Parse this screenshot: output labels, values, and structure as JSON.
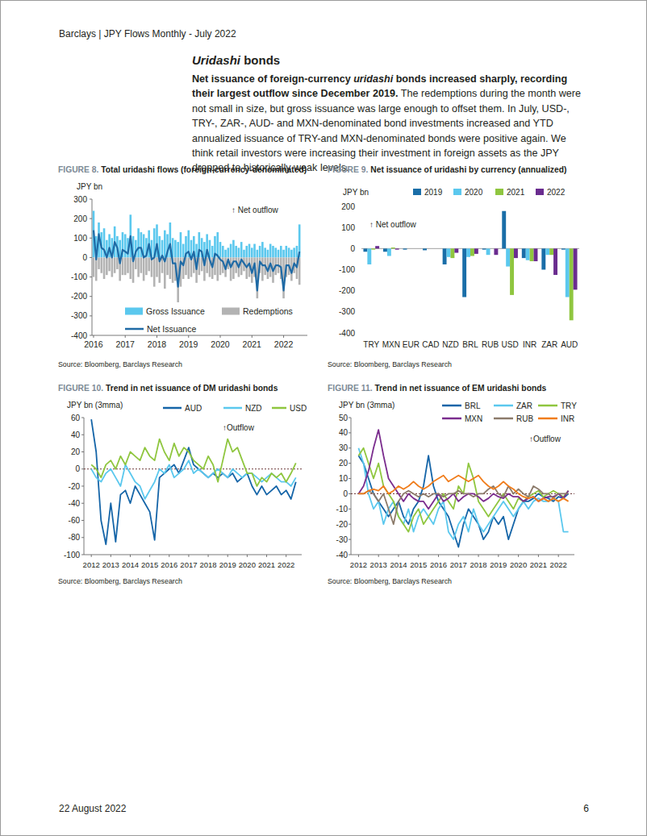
{
  "header": {
    "text": "Barclays | JPY Flows Monthly - July 2022"
  },
  "section": {
    "title": [
      {
        "text": "Uridashi",
        "italic": true
      },
      {
        "text": " bonds",
        "italic": false
      }
    ],
    "paragraph": [
      {
        "text": "Net issuance of foreign-currency ",
        "bold": true,
        "italic": false
      },
      {
        "text": "uridashi",
        "bold": true,
        "italic": true
      },
      {
        "text": " bonds increased sharply, recording their largest outflow since December 2019.",
        "bold": true,
        "italic": false
      },
      {
        "text": " The redemptions during the month were not small in size, but gross issuance was large enough to offset them. In July, USD-, TRY-, ZAR-, AUD- and MXN-denominated bond investments increased and YTD annualized issuance of TRY-and MXN-denominated bonds were positive again. We think retail investors were increasing their investment in foreign assets as the JPY dropped to historically weak levels.",
        "bold": false,
        "italic": false
      }
    ]
  },
  "chart_data": [
    {
      "figure_label": "FIGURE 8.",
      "title": "Total uridashi flows (foreign-currency-denominated)",
      "source": "Source: Bloomberg, Barclays Research",
      "type": "bar",
      "y_label": "JPY bn",
      "annotation": "↑ Net outflow",
      "legend": "bottom-left",
      "x": [
        2016,
        2016.083,
        2016.167,
        2016.25,
        2016.333,
        2016.417,
        2016.5,
        2016.583,
        2016.667,
        2016.75,
        2016.833,
        2016.917,
        2017,
        2017.083,
        2017.167,
        2017.25,
        2017.333,
        2017.417,
        2017.5,
        2017.583,
        2017.667,
        2017.75,
        2017.833,
        2017.917,
        2018,
        2018.083,
        2018.167,
        2018.25,
        2018.333,
        2018.417,
        2018.5,
        2018.583,
        2018.667,
        2018.75,
        2018.833,
        2018.917,
        2019,
        2019.083,
        2019.167,
        2019.25,
        2019.333,
        2019.417,
        2019.5,
        2019.583,
        2019.667,
        2019.75,
        2019.833,
        2019.917,
        2020,
        2020.083,
        2020.167,
        2020.25,
        2020.333,
        2020.417,
        2020.5,
        2020.583,
        2020.667,
        2020.75,
        2020.833,
        2020.917,
        2021,
        2021.083,
        2021.167,
        2021.25,
        2021.333,
        2021.417,
        2021.5,
        2021.583,
        2021.667,
        2021.75,
        2021.833,
        2021.917,
        2022,
        2022.083,
        2022.167,
        2022.25,
        2022.333,
        2022.417,
        2022.5
      ],
      "xlim": [
        2015.95,
        2022.75
      ],
      "xticks": [
        2016,
        2017,
        2018,
        2019,
        2020,
        2021,
        2022
      ],
      "ylim": [
        -400,
        300
      ],
      "yticks": [
        -400,
        -300,
        -200,
        -100,
        0,
        100,
        200,
        300
      ],
      "series": [
        {
          "name": "Gross Issuance",
          "type": "bar",
          "color": "#5bc8ee",
          "values": [
            240,
            110,
            180,
            130,
            150,
            90,
            120,
            100,
            160,
            110,
            90,
            130,
            120,
            100,
            220,
            110,
            90,
            150,
            130,
            120,
            100,
            140,
            90,
            150,
            170,
            110,
            90,
            140,
            120,
            180,
            100,
            90,
            80,
            130,
            70,
            110,
            140,
            90,
            110,
            70,
            130,
            100,
            80,
            120,
            90,
            60,
            110,
            130,
            80,
            60,
            40,
            50,
            70,
            90,
            60,
            50,
            80,
            40,
            60,
            70,
            50,
            70,
            40,
            60,
            80,
            50,
            40,
            70,
            60,
            50,
            40,
            60,
            40,
            60,
            50,
            40,
            50,
            60,
            170
          ]
        },
        {
          "name": "Redemptions",
          "type": "bar",
          "color": "#b3b3b3",
          "values": [
            -100,
            -120,
            -60,
            -80,
            -110,
            -90,
            -70,
            -100,
            -80,
            -60,
            -120,
            -90,
            -90,
            -80,
            -110,
            -130,
            -60,
            -100,
            -80,
            -120,
            -90,
            -70,
            -100,
            -150,
            -100,
            -130,
            -80,
            -160,
            -90,
            -110,
            -130,
            -120,
            -230,
            -150,
            -110,
            -90,
            -110,
            -100,
            -80,
            -130,
            -90,
            -70,
            -120,
            -80,
            -100,
            -110,
            -90,
            -120,
            -90,
            -80,
            -100,
            -60,
            -120,
            -110,
            -80,
            -100,
            -90,
            -70,
            -110,
            -100,
            -130,
            -100,
            -210,
            -80,
            -120,
            -90,
            -110,
            -100,
            -130,
            -90,
            -80,
            -110,
            -210,
            -100,
            -90,
            -120,
            -80,
            -110,
            -140
          ]
        },
        {
          "name": "Net Issuance",
          "type": "line",
          "color": "#1f6aa5",
          "values": [
            140,
            -10,
            120,
            50,
            40,
            0,
            50,
            0,
            80,
            50,
            -30,
            40,
            30,
            20,
            110,
            -20,
            30,
            50,
            50,
            0,
            10,
            70,
            -10,
            0,
            70,
            -20,
            10,
            -20,
            30,
            70,
            -30,
            -30,
            -150,
            -20,
            -40,
            20,
            30,
            -10,
            30,
            -60,
            40,
            30,
            -40,
            40,
            -10,
            -50,
            20,
            10,
            -10,
            -20,
            -60,
            -10,
            -50,
            -20,
            -20,
            -50,
            -10,
            -30,
            -50,
            -30,
            -80,
            -30,
            -170,
            -20,
            -40,
            -40,
            -70,
            -30,
            -70,
            -40,
            -40,
            -50,
            -170,
            -40,
            -40,
            -80,
            -30,
            -50,
            30
          ]
        }
      ]
    },
    {
      "figure_label": "FIGURE 9.",
      "title": "Net issuance of uridashi by currency (annualized)",
      "source": "Source: Bloomberg, Barclays Research",
      "type": "bar",
      "y_label": "JPY bn",
      "annotation": "↑ Net outflow",
      "legend": "top",
      "categories": [
        "TRY",
        "MXN",
        "EUR",
        "CAD",
        "NZD",
        "BRL",
        "RUB",
        "USD",
        "INR",
        "ZAR",
        "AUD"
      ],
      "ylim": [
        -400,
        200
      ],
      "yticks": [
        -400,
        -300,
        -200,
        -100,
        0,
        100,
        200
      ],
      "series": [
        {
          "name": "2019",
          "color": "#1a6ea8",
          "values": [
            -15,
            -15,
            -5,
            -8,
            -75,
            -230,
            -5,
            178,
            -45,
            -100,
            -5
          ]
        },
        {
          "name": "2020",
          "color": "#5bc8ee",
          "values": [
            -75,
            -35,
            0,
            0,
            -40,
            -40,
            -30,
            -85,
            -55,
            -30,
            -230
          ]
        },
        {
          "name": "2021",
          "color": "#8fc63f",
          "values": [
            -5,
            5,
            0,
            0,
            -45,
            -35,
            0,
            -220,
            -60,
            -30,
            -340
          ]
        },
        {
          "name": "2022",
          "color": "#6a2c8f",
          "values": [
            12,
            -5,
            0,
            0,
            -20,
            -25,
            -30,
            -45,
            -60,
            -125,
            -195
          ]
        }
      ]
    },
    {
      "figure_label": "FIGURE 10.",
      "title": "Trend in net issuance of DM uridashi bonds",
      "source": "Source: Bloomberg, Barclays Research",
      "type": "line",
      "y_label": "JPY bn (3mma)",
      "annotation": "↑Outflow",
      "legend": "top",
      "x": [
        2012,
        2012.25,
        2012.5,
        2012.75,
        2013,
        2013.25,
        2013.5,
        2013.75,
        2014,
        2014.25,
        2014.5,
        2014.75,
        2015,
        2015.25,
        2015.5,
        2015.75,
        2016,
        2016.25,
        2016.5,
        2016.75,
        2017,
        2017.25,
        2017.5,
        2017.75,
        2018,
        2018.25,
        2018.5,
        2018.75,
        2019,
        2019.25,
        2019.5,
        2019.75,
        2020,
        2020.25,
        2020.5,
        2020.75,
        2021,
        2021.25,
        2021.5,
        2021.75,
        2022,
        2022.25,
        2022.5
      ],
      "xlim": [
        2011.62,
        2022.8
      ],
      "xticks": [
        2012,
        2013,
        2014,
        2015,
        2016,
        2017,
        2018,
        2019,
        2020,
        2021,
        2022
      ],
      "ylim": [
        -100,
        60
      ],
      "yticks": [
        -100,
        -80,
        -60,
        -40,
        -20,
        0,
        20,
        40,
        60
      ],
      "series": [
        {
          "name": "AUD",
          "color": "#1565a8",
          "values": [
            58,
            20,
            -60,
            -88,
            -40,
            -85,
            -30,
            -25,
            -40,
            -20,
            -30,
            -40,
            -50,
            -83,
            -10,
            -5,
            0,
            5,
            -5,
            10,
            25,
            5,
            0,
            -5,
            -10,
            -5,
            -10,
            -5,
            -10,
            -5,
            -15,
            -10,
            -5,
            -20,
            -30,
            -20,
            -30,
            -25,
            -20,
            -30,
            -25,
            -35,
            -15
          ]
        },
        {
          "name": "NZD",
          "color": "#5bc8ee",
          "values": [
            0,
            -10,
            -15,
            -5,
            0,
            -10,
            -20,
            5,
            -5,
            -15,
            -20,
            -35,
            -25,
            -15,
            0,
            -5,
            5,
            -10,
            -5,
            0,
            10,
            -5,
            0,
            -5,
            -10,
            -5,
            0,
            -5,
            -10,
            0,
            -5,
            -10,
            -5,
            -5,
            -10,
            -15,
            -10,
            -5,
            -10,
            -15,
            -15,
            -20,
            -10
          ]
        },
        {
          "name": "USD",
          "color": "#8fc63f",
          "values": [
            5,
            0,
            -10,
            5,
            10,
            0,
            15,
            5,
            20,
            15,
            10,
            25,
            15,
            10,
            35,
            20,
            10,
            30,
            15,
            25,
            20,
            10,
            5,
            0,
            15,
            5,
            -15,
            10,
            35,
            20,
            25,
            10,
            -5,
            -5,
            -20,
            -10,
            -15,
            -5,
            -10,
            -5,
            -15,
            -5,
            7
          ]
        }
      ]
    },
    {
      "figure_label": "FIGURE 11.",
      "title": "Trend in net issuance of EM uridashi bonds",
      "source": "Source: Bloomberg, Barclays Research",
      "type": "line",
      "y_label": "JPY bn (3mma)",
      "annotation": "↑Outflow",
      "legend": "top",
      "x": [
        2012,
        2012.25,
        2012.5,
        2012.75,
        2013,
        2013.25,
        2013.5,
        2013.75,
        2014,
        2014.25,
        2014.5,
        2014.75,
        2015,
        2015.25,
        2015.5,
        2015.75,
        2016,
        2016.25,
        2016.5,
        2016.75,
        2017,
        2017.25,
        2017.5,
        2017.75,
        2018,
        2018.25,
        2018.5,
        2018.75,
        2019,
        2019.25,
        2019.5,
        2019.75,
        2020,
        2020.25,
        2020.5,
        2020.75,
        2021,
        2021.25,
        2021.5,
        2021.75,
        2022,
        2022.25,
        2022.5
      ],
      "xlim": [
        2011.62,
        2022.8
      ],
      "xticks": [
        2012,
        2013,
        2014,
        2015,
        2016,
        2017,
        2018,
        2019,
        2020,
        2021,
        2022
      ],
      "ylim": [
        -40,
        50
      ],
      "yticks": [
        -40,
        -30,
        -20,
        -10,
        0,
        10,
        20,
        30,
        40,
        50
      ],
      "series": [
        {
          "name": "BRL",
          "color": "#1565a8",
          "values": [
            25,
            20,
            10,
            0,
            -5,
            -10,
            -15,
            -10,
            -5,
            -15,
            -20,
            -10,
            -5,
            5,
            25,
            5,
            -5,
            -10,
            -15,
            -25,
            -35,
            -20,
            -10,
            -15,
            -20,
            -30,
            -25,
            -15,
            -20,
            -15,
            -30,
            -20,
            -10,
            -5,
            -5,
            -3,
            0,
            -2,
            -3,
            -5,
            -2,
            -3,
            0
          ]
        },
        {
          "name": "ZAR",
          "color": "#5bc8ee",
          "values": [
            30,
            20,
            0,
            -10,
            -5,
            -20,
            -10,
            -5,
            -15,
            -20,
            -10,
            -25,
            -15,
            -10,
            -15,
            -20,
            -10,
            -5,
            -25,
            -30,
            -20,
            -15,
            -25,
            -10,
            -20,
            -25,
            -20,
            -15,
            -10,
            -5,
            -10,
            -15,
            -10,
            -5,
            -10,
            -5,
            -3,
            -5,
            -5,
            -3,
            -5,
            -25,
            -25
          ]
        },
        {
          "name": "TRY",
          "color": "#8fc63f",
          "values": [
            25,
            30,
            20,
            10,
            20,
            5,
            0,
            -5,
            -15,
            -20,
            -25,
            -15,
            -10,
            -20,
            -15,
            -10,
            -5,
            0,
            -5,
            -10,
            5,
            0,
            20,
            10,
            -5,
            -10,
            -15,
            -10,
            -5,
            0,
            -5,
            -10,
            -3,
            -5,
            -2,
            0,
            2,
            -2,
            0,
            2,
            0,
            -2,
            2
          ]
        },
        {
          "name": "MXN",
          "color": "#7b2d8e",
          "values": [
            0,
            5,
            15,
            30,
            42,
            25,
            10,
            5,
            0,
            -5,
            0,
            -3,
            -5,
            -5,
            -10,
            -5,
            0,
            -5,
            -3,
            0,
            -5,
            -2,
            0,
            0,
            -2,
            -5,
            -3,
            0,
            -2,
            -3,
            0,
            -2,
            -2,
            -5,
            -3,
            -2,
            -5,
            -3,
            -2,
            -2,
            0,
            -3,
            2
          ]
        },
        {
          "name": "RUB",
          "color": "#8c7b6b",
          "values": [
            0,
            0,
            2,
            0,
            -5,
            0,
            -10,
            -20,
            -5,
            0,
            2,
            0,
            -2,
            0,
            -2,
            0,
            0,
            -2,
            0,
            0,
            2,
            0,
            0,
            -2,
            0,
            0,
            3,
            5,
            0,
            -2,
            5,
            0,
            3,
            0,
            -2,
            5,
            3,
            0,
            0,
            -3,
            0,
            0,
            0
          ]
        },
        {
          "name": "INR",
          "color": "#f07d1c",
          "values": [
            0,
            0,
            2,
            3,
            2,
            5,
            0,
            2,
            5,
            3,
            5,
            8,
            5,
            3,
            5,
            8,
            10,
            12,
            8,
            10,
            12,
            10,
            8,
            10,
            12,
            8,
            5,
            3,
            5,
            8,
            5,
            3,
            0,
            -2,
            -3,
            -2,
            -5,
            -3,
            -5,
            -3,
            -5,
            -3,
            -5
          ]
        }
      ]
    }
  ],
  "footer": {
    "date": "22 August 2022",
    "page": "6"
  }
}
